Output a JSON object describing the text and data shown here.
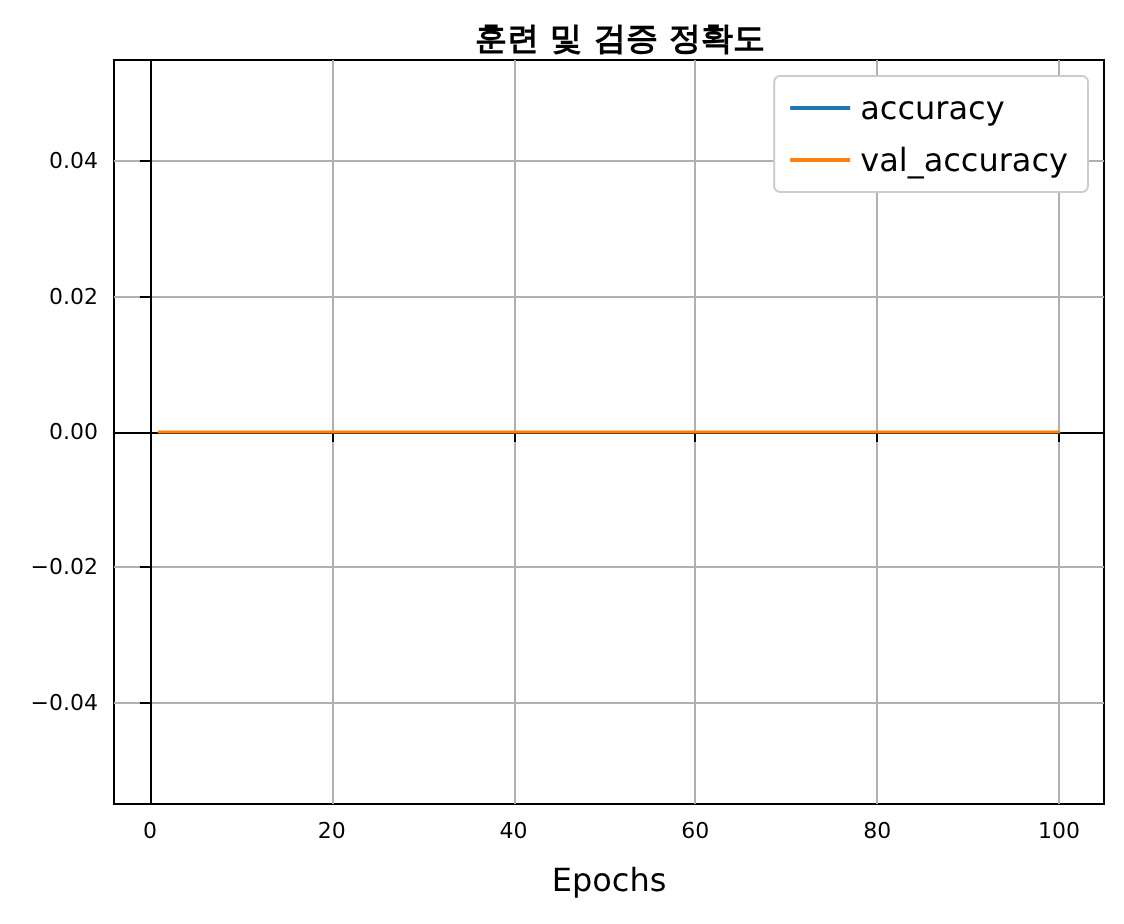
{
  "chart_data": {
    "type": "line",
    "title": "훈련 및 검증 정확도",
    "xlabel": "Epochs",
    "x": [
      1,
      100
    ],
    "series": [
      {
        "name": "accuracy",
        "color": "#1f77b4",
        "values": [
          null,
          null
        ]
      },
      {
        "name": "val_accuracy",
        "color": "#ff7f0e",
        "values": [
          0,
          0
        ]
      }
    ],
    "xlim": [
      -3.95,
      104.95
    ],
    "xticks": [
      0,
      20,
      40,
      60,
      80,
      100
    ],
    "ylim": [
      -0.055,
      0.055
    ],
    "yticks": [
      {
        "value": -0.04,
        "label": "−0.04"
      },
      {
        "value": -0.02,
        "label": "−0.02"
      },
      {
        "value": 0,
        "label": "0.00"
      },
      {
        "value": 0.02,
        "label": "0.02"
      },
      {
        "value": 0.04,
        "label": "0.04"
      }
    ],
    "grid": true,
    "legend": "top right",
    "marker": "none",
    "line_style": "solid"
  }
}
